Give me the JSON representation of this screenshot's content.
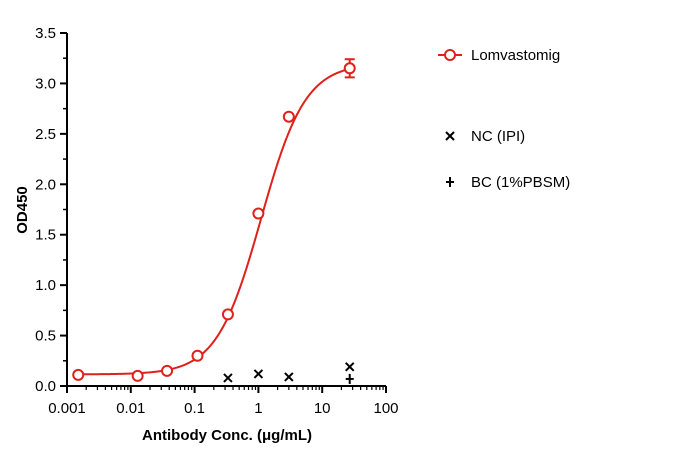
{
  "chart_data": {
    "type": "line",
    "x_scale": "log",
    "xlabel": "Antibody Conc. (μg/mL)",
    "ylabel": "OD450",
    "xlim": [
      0.001,
      100
    ],
    "ylim": [
      0,
      3.5
    ],
    "x_ticks": [
      "0.001",
      "0.01",
      "0.1",
      "1",
      "10",
      "100"
    ],
    "y_ticks": [
      "0.0",
      "0.5",
      "1.0",
      "1.5",
      "2.0",
      "2.5",
      "3.0",
      "3.5"
    ],
    "grid": false,
    "legend_position": "right",
    "series": [
      {
        "name": "Lomvastomig",
        "color": "#e0201b",
        "marker": "open-circle",
        "x": [
          0.0015,
          0.0128,
          0.037,
          0.111,
          0.333,
          1.0,
          3.0,
          27.0
        ],
        "y": [
          0.11,
          0.1,
          0.15,
          0.3,
          0.71,
          1.71,
          2.67,
          3.15
        ],
        "error": [
          0,
          0,
          0,
          0,
          0,
          0,
          0,
          0.09
        ],
        "fit_curve": {
          "bottom": 0.115,
          "top": 3.2,
          "ec50": 1.1,
          "hill": 1.25
        }
      },
      {
        "name": "NC (IPI)",
        "color": "#000000",
        "marker": "x",
        "x": [
          0.333,
          1.0,
          3.0,
          27.0
        ],
        "y": [
          0.08,
          0.12,
          0.09,
          0.19
        ]
      },
      {
        "name": "BC (1%PBSM)",
        "color": "#000000",
        "marker": "plus",
        "x": [
          27.0
        ],
        "y": [
          0.07
        ]
      }
    ]
  }
}
